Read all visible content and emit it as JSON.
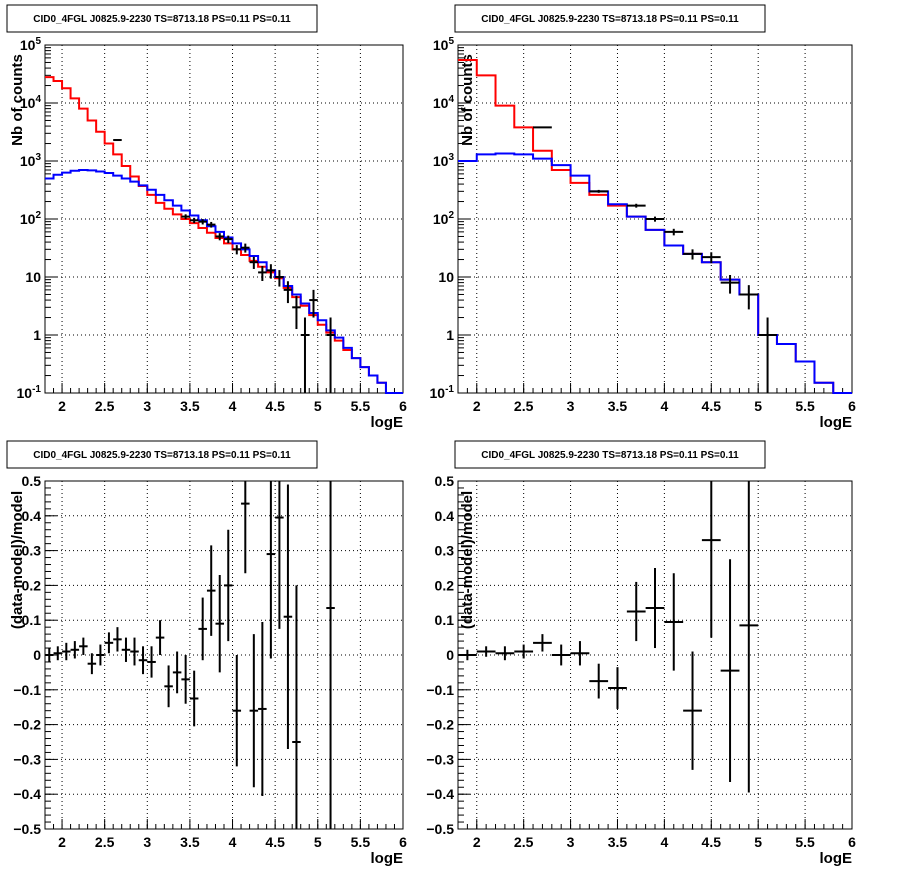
{
  "chart_data": [
    {
      "type": "line",
      "title": "CID0_4FGL J0825.9-2230 TS=8713.18 PS=0.11 PS=0.11",
      "xlabel": "logE",
      "ylabel": "Nb of counts",
      "xlim": [
        1.8,
        6.0
      ],
      "ylim": [
        0.1,
        100000
      ],
      "yscale": "log",
      "grid": true,
      "x_ticks": [
        "2",
        "2.5",
        "3",
        "3.5",
        "4",
        "4.5",
        "5",
        "5.5",
        "6"
      ],
      "y_ticks": [
        "10^{-1}",
        "1",
        "10",
        "10^{2}",
        "10^{3}",
        "10^{4}",
        "10^{5}"
      ],
      "bin_edges": [
        1.8,
        1.9,
        2.0,
        2.1,
        2.2,
        2.3,
        2.4,
        2.5,
        2.6,
        2.7,
        2.8,
        2.9,
        3.0,
        3.1,
        3.2,
        3.3,
        3.4,
        3.5,
        3.6,
        3.7,
        3.8,
        3.9,
        4.0,
        4.1,
        4.2,
        4.3,
        4.4,
        4.5,
        4.6,
        4.7,
        4.8,
        4.9,
        5.0,
        5.1,
        5.2,
        5.3,
        5.4,
        5.5,
        5.6,
        5.7,
        5.8,
        5.9,
        6.0
      ],
      "series": [
        {
          "color": "#ff0000",
          "step": true,
          "values": [
            28000,
            24000,
            18000,
            12000,
            8000,
            5000,
            3200,
            2000,
            1300,
            820,
            540,
            370,
            260,
            190,
            150,
            120,
            100,
            85,
            70,
            58,
            47,
            38,
            30,
            24,
            19,
            15,
            12,
            9.5,
            6.5,
            4.5,
            3.2,
            2.2,
            1.5,
            1.1,
            0.8,
            0.55,
            0.4,
            0.28,
            0.2,
            0.15,
            0.1,
            0.08
          ]
        },
        {
          "color": "#0000ff",
          "step": true,
          "values": [
            500,
            580,
            630,
            680,
            700,
            690,
            660,
            620,
            560,
            500,
            440,
            380,
            320,
            260,
            210,
            170,
            140,
            115,
            95,
            75,
            60,
            48,
            38,
            30,
            23,
            18,
            13,
            10,
            7,
            5,
            3.5,
            2.4,
            1.8,
            1.2,
            0.9,
            0.6,
            0.4,
            0.28,
            0.2,
            0.15,
            0.1,
            0.08
          ]
        },
        {
          "color": "#000000",
          "type": "errorbar",
          "points": [
            {
              "x": 2.65,
              "y": 2300
            },
            {
              "x": 3.45,
              "y": 110
            },
            {
              "x": 3.55,
              "y": 95
            },
            {
              "x": 3.65,
              "y": 90
            },
            {
              "x": 3.75,
              "y": 80
            },
            {
              "x": 3.85,
              "y": 50
            },
            {
              "x": 3.95,
              "y": 45
            },
            {
              "x": 4.05,
              "y": 30
            },
            {
              "x": 4.15,
              "y": 32
            },
            {
              "x": 4.25,
              "y": 18
            },
            {
              "x": 4.35,
              "y": 12
            },
            {
              "x": 4.45,
              "y": 13
            },
            {
              "x": 4.55,
              "y": 10
            },
            {
              "x": 4.65,
              "y": 6
            },
            {
              "x": 4.75,
              "y": 3
            },
            {
              "x": 4.85,
              "y": 1
            },
            {
              "x": 4.95,
              "y": 4
            },
            {
              "x": 5.15,
              "y": 1
            }
          ]
        }
      ]
    },
    {
      "type": "line",
      "title": "CID0_4FGL J0825.9-2230 TS=8713.18 PS=0.11 PS=0.11",
      "xlabel": "logE",
      "ylabel": "Nb of counts",
      "xlim": [
        1.8,
        6.0
      ],
      "ylim": [
        0.1,
        100000
      ],
      "yscale": "log",
      "grid": true,
      "x_ticks": [
        "2",
        "2.5",
        "3",
        "3.5",
        "4",
        "4.5",
        "5",
        "5.5",
        "6"
      ],
      "y_ticks": [
        "10^{-1}",
        "1",
        "10",
        "10^{2}",
        "10^{3}",
        "10^{4}",
        "10^{5}"
      ],
      "bin_edges": [
        1.8,
        2.0,
        2.2,
        2.4,
        2.6,
        2.8,
        3.0,
        3.2,
        3.4,
        3.6,
        3.8,
        4.0,
        4.2,
        4.4,
        4.6,
        4.8,
        5.0,
        5.2,
        5.4,
        5.6,
        5.8,
        6.0
      ],
      "series": [
        {
          "color": "#ff0000",
          "step": true,
          "values": [
            55000,
            30000,
            9000,
            3800,
            1500,
            700,
            420,
            260,
            170,
            110,
            65,
            35,
            25,
            18,
            9,
            5,
            1,
            0.7,
            0.35,
            0.15,
            0.1
          ]
        },
        {
          "color": "#0000ff",
          "step": true,
          "values": [
            1000,
            1300,
            1350,
            1300,
            1100,
            850,
            560,
            300,
            180,
            110,
            65,
            35,
            25,
            18,
            9,
            5,
            1,
            0.7,
            0.35,
            0.15,
            0.1
          ]
        },
        {
          "color": "#000000",
          "type": "errorbar",
          "points": [
            {
              "x": 2.7,
              "y": 3800
            },
            {
              "x": 3.3,
              "y": 300
            },
            {
              "x": 3.7,
              "y": 170
            },
            {
              "x": 3.9,
              "y": 100
            },
            {
              "x": 4.1,
              "y": 60
            },
            {
              "x": 4.3,
              "y": 25
            },
            {
              "x": 4.5,
              "y": 22
            },
            {
              "x": 4.7,
              "y": 8
            },
            {
              "x": 4.9,
              "y": 5
            },
            {
              "x": 5.1,
              "y": 1
            }
          ]
        }
      ]
    },
    {
      "type": "scatter",
      "title": "CID0_4FGL J0825.9-2230 TS=8713.18 PS=0.11 PS=0.11",
      "xlabel": "logE",
      "ylabel": "(data-model)/model",
      "xlim": [
        1.8,
        6.0
      ],
      "ylim": [
        -0.5,
        0.5
      ],
      "grid": true,
      "x_ticks": [
        "2",
        "2.5",
        "3",
        "3.5",
        "4",
        "4.5",
        "5",
        "5.5",
        "6"
      ],
      "y_ticks": [
        "−0.5",
        "−0.4",
        "−0.3",
        "−0.2",
        "−0.1",
        "0",
        "0.1",
        "0.2",
        "0.3",
        "0.4",
        "0.5"
      ],
      "points": [
        {
          "x": 1.85,
          "y": 0.0,
          "err": 0.02
        },
        {
          "x": 1.95,
          "y": 0.005,
          "err": 0.02
        },
        {
          "x": 2.05,
          "y": 0.01,
          "err": 0.025
        },
        {
          "x": 2.15,
          "y": 0.015,
          "err": 0.025
        },
        {
          "x": 2.25,
          "y": 0.025,
          "err": 0.025
        },
        {
          "x": 2.35,
          "y": -0.025,
          "err": 0.03
        },
        {
          "x": 2.45,
          "y": 0.0,
          "err": 0.03
        },
        {
          "x": 2.55,
          "y": 0.035,
          "err": 0.03
        },
        {
          "x": 2.65,
          "y": 0.045,
          "err": 0.035
        },
        {
          "x": 2.75,
          "y": 0.015,
          "err": 0.035
        },
        {
          "x": 2.85,
          "y": 0.01,
          "err": 0.04
        },
        {
          "x": 2.95,
          "y": -0.015,
          "err": 0.04
        },
        {
          "x": 3.05,
          "y": -0.02,
          "err": 0.045
        },
        {
          "x": 3.15,
          "y": 0.05,
          "err": 0.05
        },
        {
          "x": 3.25,
          "y": -0.09,
          "err": 0.06
        },
        {
          "x": 3.35,
          "y": -0.05,
          "err": 0.06
        },
        {
          "x": 3.45,
          "y": -0.07,
          "err": 0.07
        },
        {
          "x": 3.55,
          "y": -0.125,
          "err": 0.08
        },
        {
          "x": 3.65,
          "y": 0.075,
          "err": 0.09
        },
        {
          "x": 3.75,
          "y": 0.185,
          "err": 0.13
        },
        {
          "x": 3.85,
          "y": 0.09,
          "err": 0.14
        },
        {
          "x": 3.95,
          "y": 0.2,
          "err": 0.16
        },
        {
          "x": 4.05,
          "y": -0.16,
          "err": 0.16
        },
        {
          "x": 4.15,
          "y": 0.435,
          "err": 0.2
        },
        {
          "x": 4.25,
          "y": -0.16,
          "err": 0.22
        },
        {
          "x": 4.35,
          "y": -0.155,
          "err": 0.25
        },
        {
          "x": 4.45,
          "y": 0.29,
          "err": 0.3
        },
        {
          "x": 4.55,
          "y": 0.395,
          "err": 0.32
        },
        {
          "x": 4.65,
          "y": 0.11,
          "err": 0.38
        },
        {
          "x": 4.75,
          "y": -0.25,
          "err": 0.45
        },
        {
          "x": 5.15,
          "y": 0.135,
          "err": 0.9
        }
      ]
    },
    {
      "type": "scatter",
      "title": "CID0_4FGL J0825.9-2230 TS=8713.18 PS=0.11 PS=0.11",
      "xlabel": "logE",
      "ylabel": "(data-model)/model",
      "xlim": [
        1.8,
        6.0
      ],
      "ylim": [
        -0.5,
        0.5
      ],
      "grid": true,
      "x_ticks": [
        "2",
        "2.5",
        "3",
        "3.5",
        "4",
        "4.5",
        "5",
        "5.5",
        "6"
      ],
      "y_ticks": [
        "−0.5",
        "−0.4",
        "−0.3",
        "−0.2",
        "−0.1",
        "0",
        "0.1",
        "0.2",
        "0.3",
        "0.4",
        "0.5"
      ],
      "points": [
        {
          "x": 1.9,
          "y": 0.0,
          "err": 0.015
        },
        {
          "x": 2.1,
          "y": 0.01,
          "err": 0.015
        },
        {
          "x": 2.3,
          "y": 0.005,
          "err": 0.02
        },
        {
          "x": 2.5,
          "y": 0.01,
          "err": 0.02
        },
        {
          "x": 2.7,
          "y": 0.035,
          "err": 0.025
        },
        {
          "x": 2.9,
          "y": 0.0,
          "err": 0.03
        },
        {
          "x": 3.1,
          "y": 0.005,
          "err": 0.035
        },
        {
          "x": 3.3,
          "y": -0.075,
          "err": 0.05
        },
        {
          "x": 3.5,
          "y": -0.095,
          "err": 0.06
        },
        {
          "x": 3.7,
          "y": 0.125,
          "err": 0.085
        },
        {
          "x": 3.9,
          "y": 0.135,
          "err": 0.115
        },
        {
          "x": 4.1,
          "y": 0.095,
          "err": 0.14
        },
        {
          "x": 4.3,
          "y": -0.16,
          "err": 0.17
        },
        {
          "x": 4.5,
          "y": 0.33,
          "err": 0.28
        },
        {
          "x": 4.7,
          "y": -0.045,
          "err": 0.32
        },
        {
          "x": 4.9,
          "y": 0.085,
          "err": 0.48
        }
      ]
    }
  ]
}
